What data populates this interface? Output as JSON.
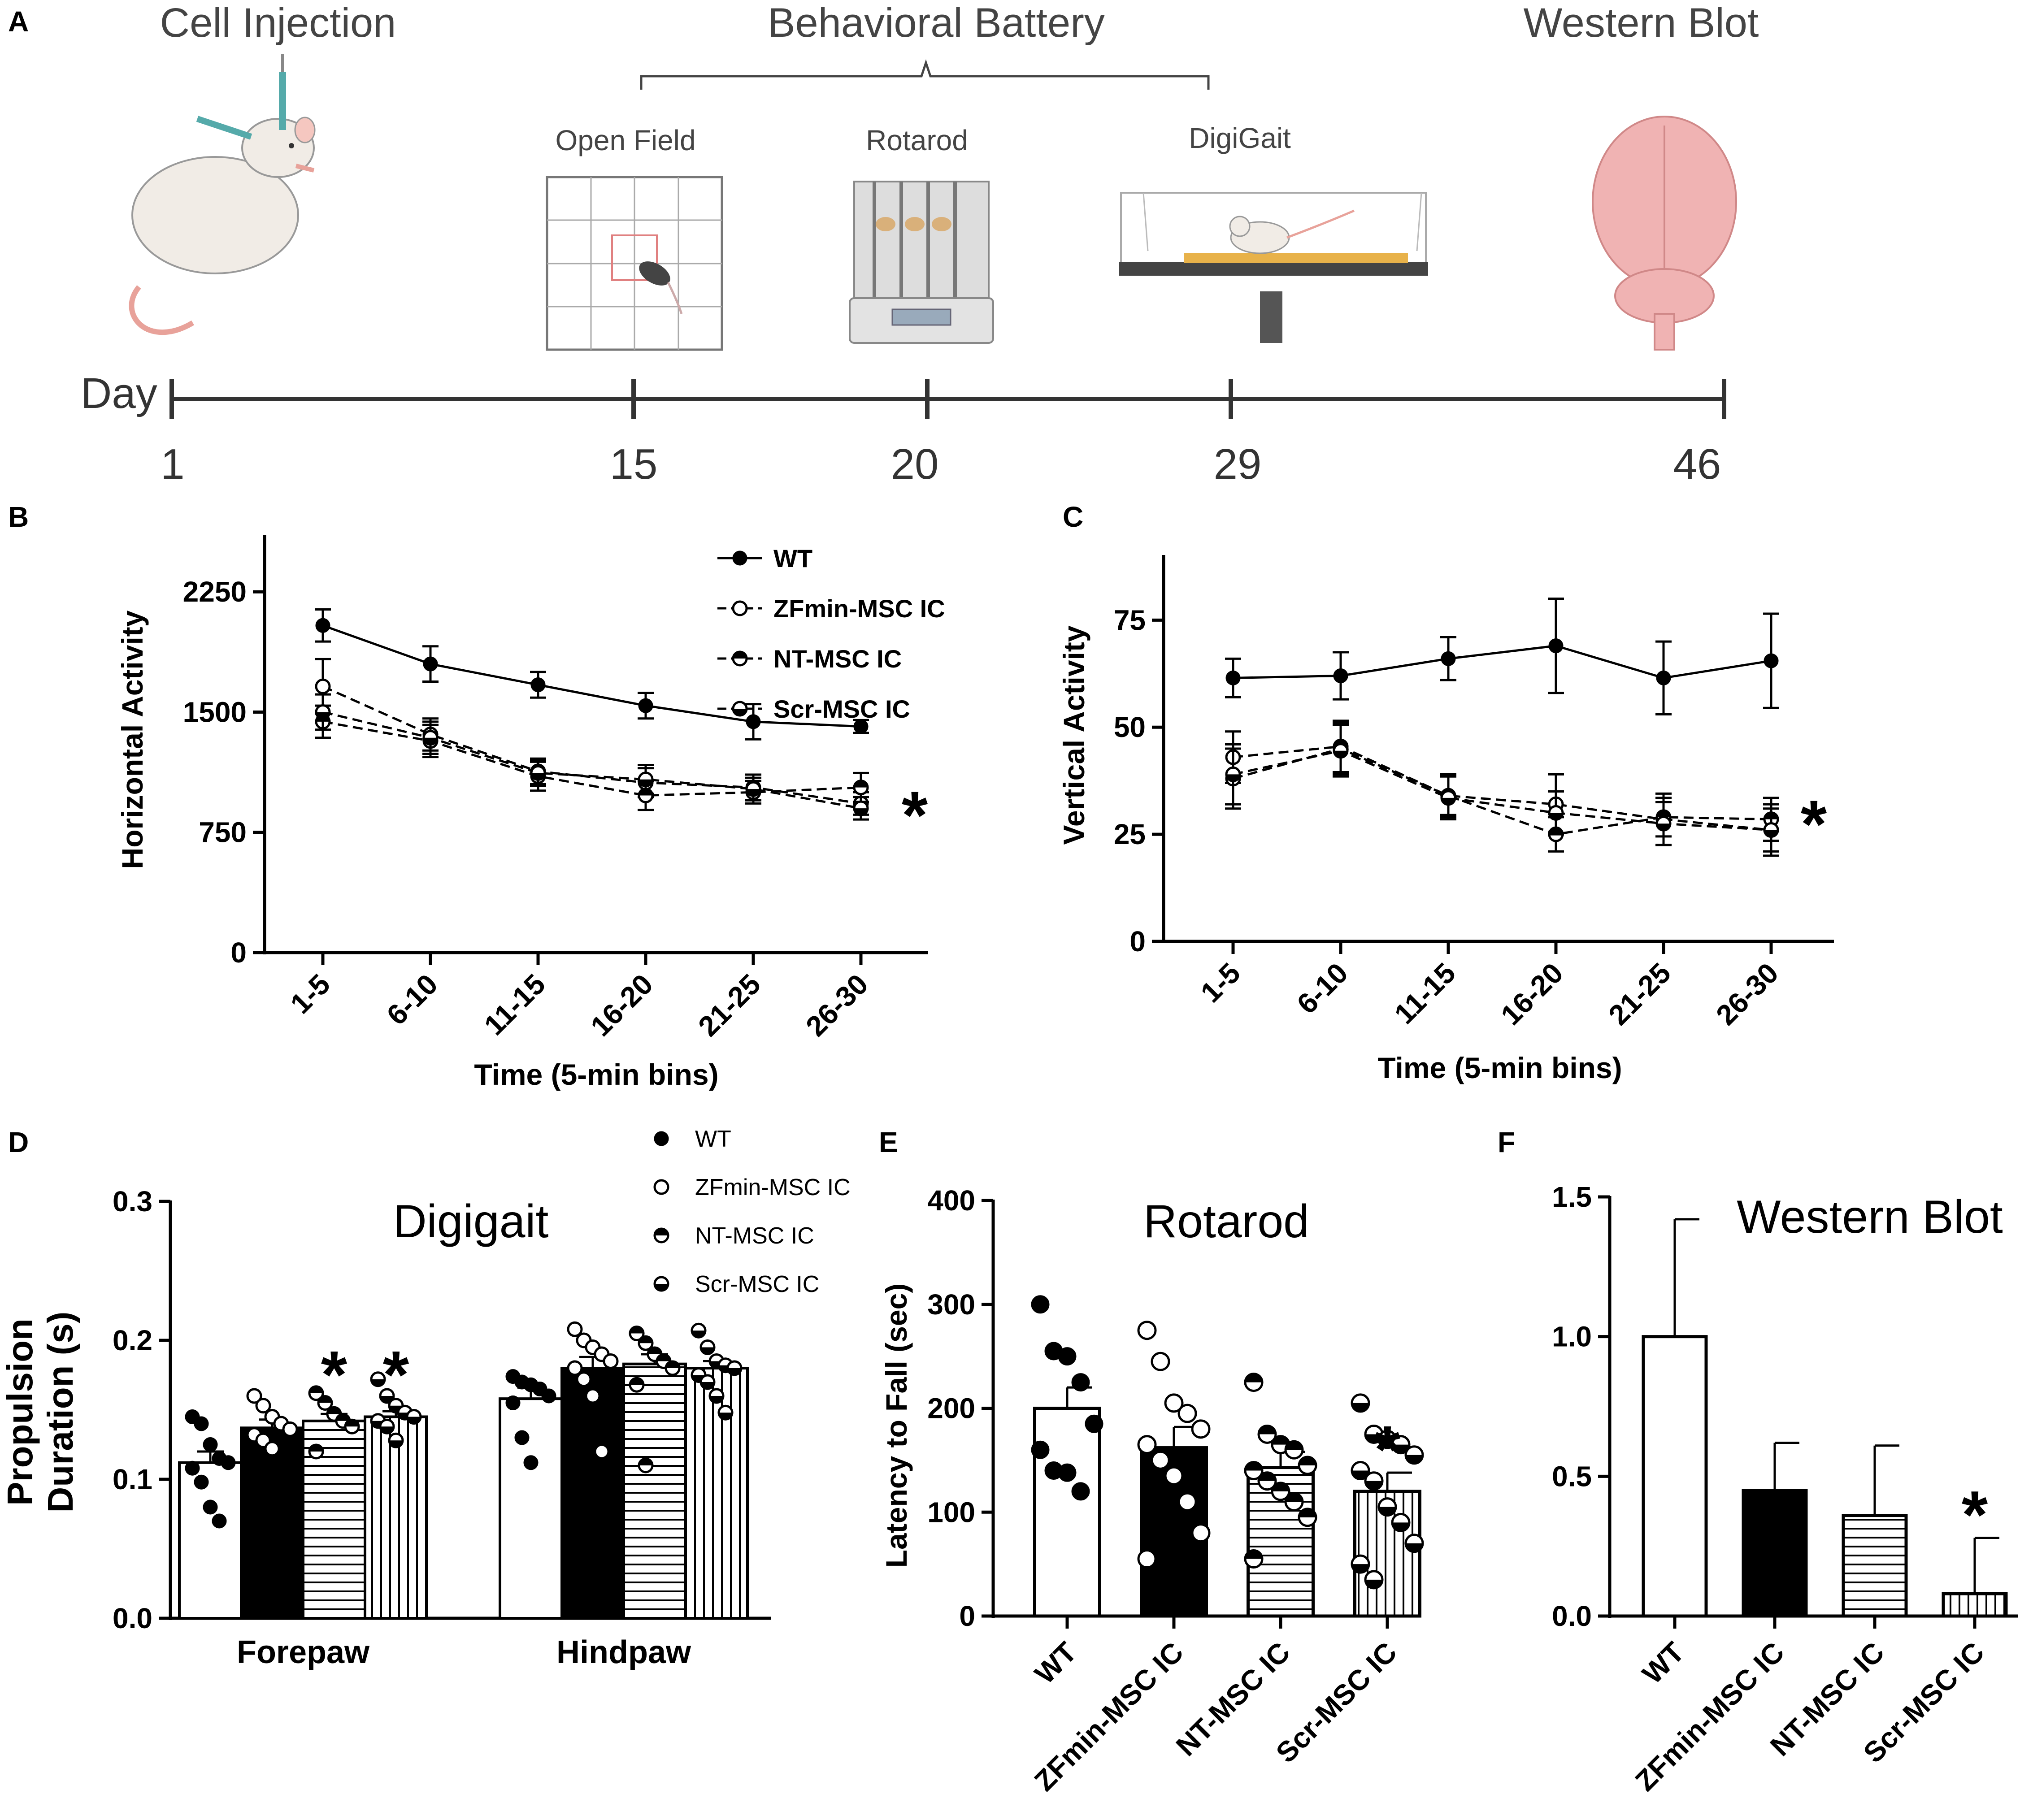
{
  "panel_a": {
    "label": "A",
    "headings": {
      "injection": "Cell Injection",
      "battery": "Behavioral Battery",
      "blot": "Western Blot"
    },
    "tests": {
      "open_field": "Open Field",
      "rotarod": "Rotarod",
      "digigait": "DigiGait"
    },
    "timeline": {
      "axis_label": "Day",
      "days": [
        "1",
        "15",
        "20",
        "29",
        "46"
      ]
    }
  },
  "colors": {
    "black": "#000000",
    "white": "#ffffff",
    "brain": "#f0b3b3",
    "rat": "#f1ece6",
    "tail": "#e8a29a"
  },
  "chart_data": [
    {
      "id": "B",
      "label": "B",
      "type": "line",
      "xlabel": "Time (5-min bins)",
      "ylabel": "Horizontal Activity",
      "categories": [
        "1-5",
        "6-10",
        "11-15",
        "16-20",
        "21-25",
        "26-30"
      ],
      "ylim": [
        0,
        2600
      ],
      "yticks": [
        0,
        750,
        1500,
        2250
      ],
      "yticklabels": [
        "0",
        "750",
        "1500",
        "2250"
      ],
      "series": [
        {
          "name": "WT",
          "marker": "filled",
          "dash": "solid",
          "values": [
            2040,
            1800,
            1670,
            1540,
            1440,
            1410
          ],
          "errors": [
            100,
            110,
            80,
            80,
            110,
            40
          ]
        },
        {
          "name": "ZFmin-MSC IC",
          "marker": "open",
          "dash": "dashed",
          "values": [
            1660,
            1360,
            1130,
            1060,
            1030,
            930
          ],
          "errors": [
            170,
            100,
            80,
            90,
            80,
            70
          ]
        },
        {
          "name": "NT-MSC IC",
          "marker": "half-top",
          "dash": "dashed",
          "values": [
            1440,
            1320,
            1100,
            980,
            1000,
            1030
          ],
          "errors": [
            100,
            100,
            90,
            90,
            70,
            90
          ]
        },
        {
          "name": "Scr-MSC IC",
          "marker": "half-bottom",
          "dash": "dashed",
          "values": [
            1500,
            1340,
            1120,
            1080,
            1020,
            900
          ],
          "errors": [
            110,
            100,
            80,
            90,
            70,
            70
          ]
        }
      ],
      "significance": "*"
    },
    {
      "id": "C",
      "label": "C",
      "type": "line",
      "xlabel": "Time (5-min bins)",
      "ylabel": "Vertical Activity",
      "categories": [
        "1-5",
        "6-10",
        "11-15",
        "16-20",
        "21-25",
        "26-30"
      ],
      "ylim": [
        0,
        90
      ],
      "yticks": [
        0,
        25,
        50,
        75
      ],
      "yticklabels": [
        "0",
        "25",
        "50",
        "75"
      ],
      "series": [
        {
          "name": "WT",
          "marker": "filled",
          "dash": "solid",
          "values": [
            61.5,
            62,
            66,
            69,
            61.5,
            65.5
          ],
          "errors": [
            4.5,
            5.5,
            5,
            11,
            8.5,
            11
          ]
        },
        {
          "name": "ZFmin-MSC IC",
          "marker": "open",
          "dash": "dashed",
          "values": [
            43,
            45.5,
            34,
            32,
            28.5,
            26
          ],
          "errors": [
            6,
            6,
            5,
            7,
            6,
            6
          ]
        },
        {
          "name": "NT-MSC IC",
          "marker": "half-top",
          "dash": "dashed",
          "values": [
            38,
            45,
            34,
            25,
            29,
            28.5
          ],
          "errors": [
            7,
            6,
            4.5,
            4,
            4.5,
            5
          ]
        },
        {
          "name": "Scr-MSC IC",
          "marker": "half-bottom",
          "dash": "dashed",
          "values": [
            39,
            44.5,
            33.5,
            30,
            27.5,
            26
          ],
          "errors": [
            7,
            6,
            5,
            5,
            5,
            5
          ]
        }
      ],
      "significance": "*"
    },
    {
      "id": "D",
      "label": "D",
      "type": "bar",
      "title": "Digigait",
      "ylabel_line1": "Propulsion",
      "ylabel_line2": "Duration (s)",
      "categories": [
        "Forepaw",
        "Hindpaw"
      ],
      "ylim": [
        0,
        0.3
      ],
      "yticks": [
        0,
        0.1,
        0.2,
        0.3
      ],
      "yticklabels": [
        "0.0",
        "0.1",
        "0.2",
        "0.3"
      ],
      "legend": [
        "WT",
        "ZFmin-MSC IC",
        "NT-MSC IC",
        "Scr-MSC IC"
      ],
      "series": [
        {
          "name": "WT",
          "fill": "white",
          "values": [
            0.112,
            0.158
          ],
          "errors": [
            0.008,
            0.008
          ],
          "points": [
            [
              0.145,
              0.14,
              0.125,
              0.115,
              0.112,
              0.108,
              0.098,
              0.08,
              0.07
            ],
            [
              0.174,
              0.17,
              0.168,
              0.165,
              0.16,
              0.155,
              0.13,
              0.112
            ]
          ]
        },
        {
          "name": "ZFmin-MSC IC",
          "fill": "black",
          "values": [
            0.137,
            0.18
          ],
          "errors": [
            0.006,
            0.008
          ],
          "points": [
            [
              0.16,
              0.153,
              0.145,
              0.14,
              0.136,
              0.132,
              0.128,
              0.122
            ],
            [
              0.208,
              0.2,
              0.195,
              0.19,
              0.185,
              0.18,
              0.172,
              0.16,
              0.12
            ]
          ]
        },
        {
          "name": "NT-MSC IC",
          "fill": "hstripe",
          "values": [
            0.142,
            0.183
          ],
          "errors": [
            0.005,
            0.007
          ],
          "points": [
            [
              0.162,
              0.155,
              0.147,
              0.142,
              0.138,
              0.12
            ],
            [
              0.205,
              0.198,
              0.19,
              0.185,
              0.18,
              0.168,
              0.11
            ]
          ]
        },
        {
          "name": "Scr-MSC IC",
          "fill": "vstripe",
          "values": [
            0.145,
            0.18
          ],
          "errors": [
            0.004,
            0.005
          ],
          "points": [
            [
              0.172,
              0.16,
              0.153,
              0.148,
              0.145,
              0.142,
              0.138,
              0.128
            ],
            [
              0.207,
              0.195,
              0.185,
              0.182,
              0.18,
              0.175,
              0.17,
              0.16,
              0.148
            ]
          ]
        }
      ],
      "significance_labels": [
        "*",
        "*"
      ]
    },
    {
      "id": "E",
      "label": "E",
      "type": "bar",
      "title": "Rotarod",
      "ylabel": "Latency to Fall (sec)",
      "categories": [
        "WT",
        "ZFmin-MSC IC",
        "NT-MSC IC",
        "Scr-MSC IC"
      ],
      "ylim": [
        0,
        400
      ],
      "yticks": [
        0,
        100,
        200,
        300,
        400
      ],
      "yticklabels": [
        "0",
        "100",
        "200",
        "300",
        "400"
      ],
      "values": [
        200,
        162,
        143,
        120
      ],
      "errors": [
        20,
        20,
        15,
        18
      ],
      "fills": [
        "white",
        "black",
        "hstripe",
        "vstripe"
      ],
      "markers": [
        "filled",
        "open",
        "half-top",
        "half-bottom"
      ],
      "points": [
        [
          300,
          255,
          250,
          225,
          185,
          160,
          140,
          138,
          120
        ],
        [
          275,
          245,
          205,
          195,
          180,
          165,
          150,
          135,
          110,
          80,
          55
        ],
        [
          225,
          175,
          165,
          160,
          145,
          140,
          130,
          120,
          110,
          95,
          55
        ],
        [
          205,
          175,
          170,
          165,
          155,
          140,
          130,
          105,
          90,
          70,
          50,
          35
        ]
      ],
      "significance": "*"
    },
    {
      "id": "F",
      "label": "F",
      "type": "bar",
      "title": "Western Blot",
      "categories": [
        "WT",
        "ZFmin-MSC IC",
        "NT-MSC IC",
        "Scr-MSC IC"
      ],
      "ylim": [
        0,
        1.5
      ],
      "yticks": [
        0,
        0.5,
        1.0,
        1.5
      ],
      "yticklabels": [
        "0.0",
        "0.5",
        "1.0",
        "1.5"
      ],
      "values": [
        1.0,
        0.45,
        0.36,
        0.08
      ],
      "errors": [
        0.42,
        0.17,
        0.25,
        0.2
      ],
      "fills": [
        "white",
        "black",
        "hstripe",
        "vstripe"
      ],
      "significance": "*"
    }
  ]
}
